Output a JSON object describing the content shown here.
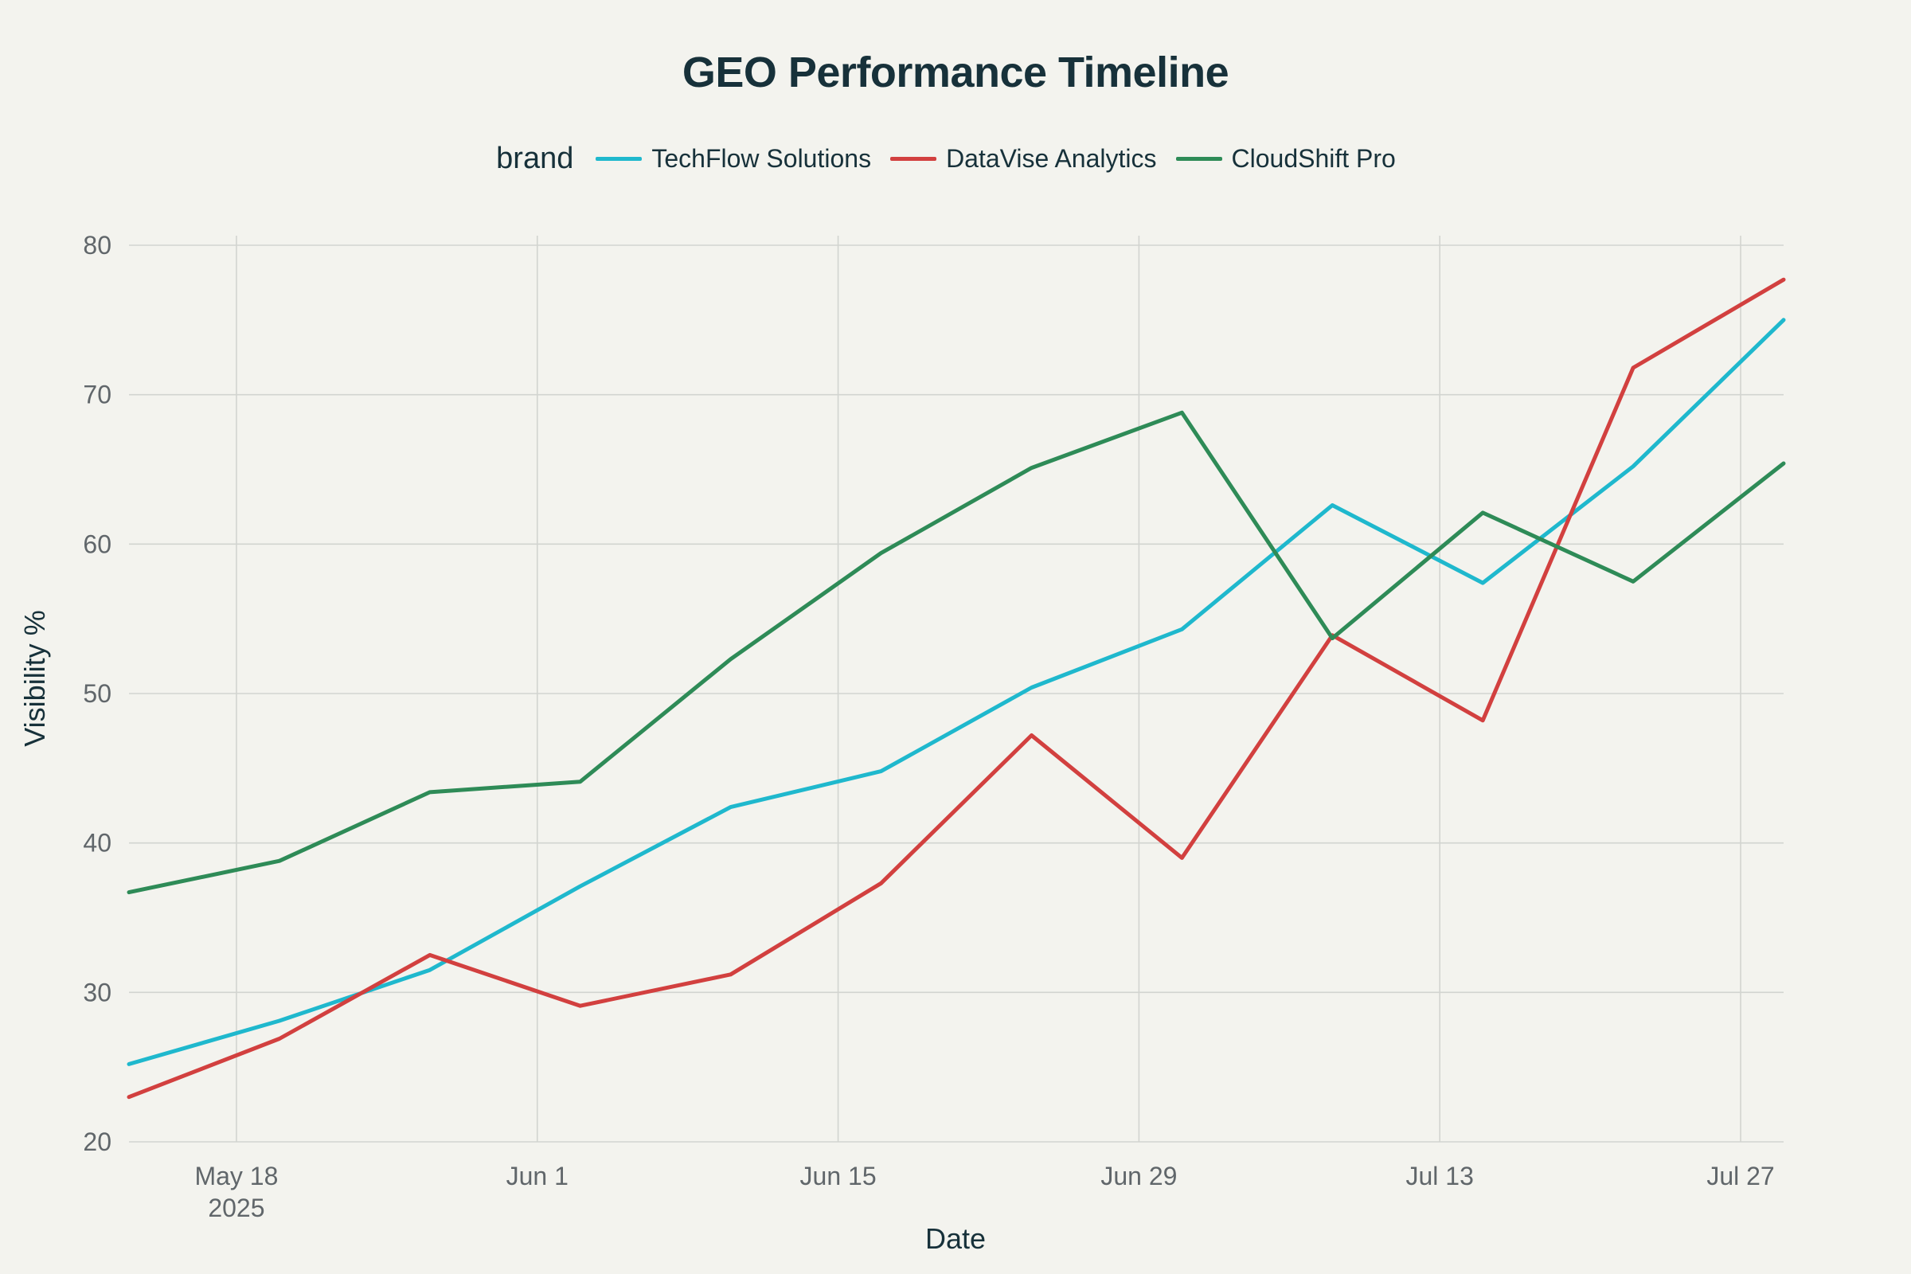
{
  "chart_data": {
    "type": "line",
    "title": "GEO Performance Timeline",
    "xlabel": "Date",
    "ylabel": "Visibility %",
    "legend_title": "brand",
    "legend_position": "top-center",
    "grid": true,
    "x": [
      "2025-05-13",
      "2025-05-20",
      "2025-05-27",
      "2025-06-03",
      "2025-06-10",
      "2025-06-17",
      "2025-06-24",
      "2025-07-01",
      "2025-07-08",
      "2025-07-15",
      "2025-07-22",
      "2025-07-29"
    ],
    "xlim": [
      "2025-05-13",
      "2025-07-29"
    ],
    "ylim": [
      20,
      80
    ],
    "x_ticks": [
      {
        "date": "2025-05-18",
        "label": "May 18",
        "sublabel": "2025"
      },
      {
        "date": "2025-06-01",
        "label": "Jun 1",
        "sublabel": ""
      },
      {
        "date": "2025-06-15",
        "label": "Jun 15",
        "sublabel": ""
      },
      {
        "date": "2025-06-29",
        "label": "Jun 29",
        "sublabel": ""
      },
      {
        "date": "2025-07-13",
        "label": "Jul 13",
        "sublabel": ""
      },
      {
        "date": "2025-07-27",
        "label": "Jul 27",
        "sublabel": ""
      }
    ],
    "y_ticks": [
      20,
      30,
      40,
      50,
      60,
      70,
      80
    ],
    "series": [
      {
        "name": "TechFlow Solutions",
        "color": "#1fb8cd",
        "values": [
          25.2,
          28.1,
          31.5,
          37.1,
          42.4,
          44.8,
          50.4,
          54.3,
          62.6,
          57.4,
          65.2,
          75.0
        ]
      },
      {
        "name": "DataVise Analytics",
        "color": "#d2403f",
        "values": [
          23.0,
          26.9,
          32.5,
          29.1,
          31.2,
          37.3,
          47.2,
          39.0,
          53.9,
          48.2,
          71.8,
          77.7
        ]
      },
      {
        "name": "CloudShift Pro",
        "color": "#2e8b57",
        "values": [
          36.7,
          38.8,
          43.4,
          44.1,
          52.3,
          59.4,
          65.1,
          68.8,
          53.7,
          62.1,
          57.5,
          65.4
        ]
      }
    ]
  }
}
